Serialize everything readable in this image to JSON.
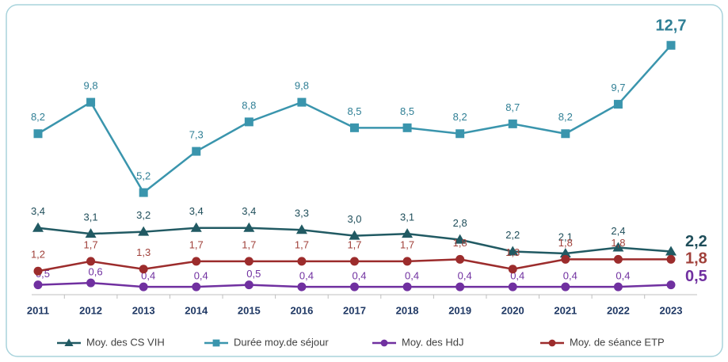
{
  "chart_data": {
    "type": "line",
    "categories": [
      "2011",
      "2012",
      "2013",
      "2014",
      "2015",
      "2016",
      "2017",
      "2018",
      "2019",
      "2020",
      "2021",
      "2022",
      "2023"
    ],
    "ylim": [
      0,
      14
    ],
    "series": [
      {
        "name": "Moy. des CS VIH",
        "color": "#215a63",
        "label_color": "#1f4e5a",
        "marker": "triangle",
        "values": [
          3.4,
          3.1,
          3.2,
          3.4,
          3.4,
          3.3,
          3.0,
          3.1,
          2.8,
          2.2,
          2.1,
          2.4,
          2.2
        ],
        "value_labels": [
          "3,4",
          "3,1",
          "3,2",
          "3,4",
          "3,4",
          "3,3",
          "3,0",
          "3,1",
          "2,8",
          "2,2",
          "2,1",
          "2,4",
          "2,2"
        ]
      },
      {
        "name": "Durée moy.de séjour",
        "color": "#3a95ad",
        "label_color": "#2f7f95",
        "marker": "square",
        "values": [
          8.2,
          9.8,
          5.2,
          7.3,
          8.8,
          9.8,
          8.5,
          8.5,
          8.2,
          8.7,
          8.2,
          9.7,
          12.7
        ],
        "value_labels": [
          "8,2",
          "9,8",
          "5,2",
          "7,3",
          "8,8",
          "9,8",
          "8,5",
          "8,5",
          "8,2",
          "8,7",
          "8,2",
          "9,7",
          "12,7"
        ]
      },
      {
        "name": "Moy. des HdJ",
        "color": "#7030a0",
        "label_color": "#7030a0",
        "marker": "circle",
        "values": [
          0.5,
          0.6,
          0.4,
          0.4,
          0.5,
          0.4,
          0.4,
          0.4,
          0.4,
          0.4,
          0.4,
          0.4,
          0.5
        ],
        "value_labels": [
          "0,5",
          "0,6",
          "0,4",
          "0,4",
          "0,5",
          "0,4",
          "0,4",
          "0,4",
          "0,4",
          "0,4",
          "0,4",
          "0,4",
          "0,5"
        ]
      },
      {
        "name": "Moy. de séance ETP",
        "color": "#9c2c2c",
        "label_color": "#a0403a",
        "marker": "circle",
        "values": [
          1.2,
          1.7,
          1.3,
          1.7,
          1.7,
          1.7,
          1.7,
          1.7,
          1.8,
          1.3,
          1.8,
          1.8,
          1.8
        ],
        "value_labels": [
          "1,2",
          "1,7",
          "1,3",
          "1,7",
          "1,7",
          "1,7",
          "1,7",
          "1,7",
          "1,8",
          "1,3",
          "1,8",
          "1,8",
          "1,8"
        ]
      }
    ]
  }
}
